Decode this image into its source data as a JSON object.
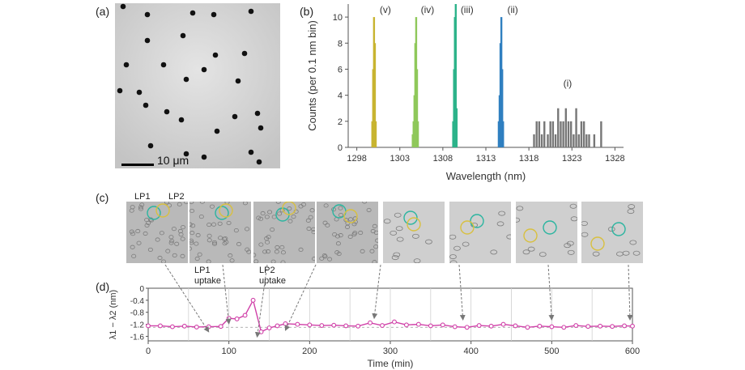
{
  "panels": {
    "a": {
      "label": "(a)",
      "scale_bar": "10 μm"
    },
    "b": {
      "label": "(b)"
    },
    "c": {
      "label": "(c)",
      "lp1": "LP1",
      "lp2": "LP2",
      "lp1_uptake": [
        "LP1",
        "uptake"
      ],
      "lp2_uptake": [
        "LP2",
        "uptake"
      ],
      "frame_count": 8
    },
    "d": {
      "label": "(d)"
    }
  },
  "chart_data": [
    {
      "type": "bar",
      "panel": "b",
      "title": "",
      "xlabel": "Wavelength (nm)",
      "ylabel": "Counts (per 0.1 nm bin)",
      "xlim": [
        1297,
        1329
      ],
      "ylim": [
        0,
        11
      ],
      "xticks": [
        1298,
        1303,
        1308,
        1313,
        1318,
        1323,
        1328
      ],
      "yticks": [
        0,
        2,
        4,
        6,
        8,
        10
      ],
      "series": [
        {
          "name": "(v)",
          "color": "#c8b430",
          "x": [
            1299.8,
            1299.9,
            1300.0,
            1300.1,
            1300.2
          ],
          "values": [
            2,
            6,
            10,
            8,
            2
          ]
        },
        {
          "name": "(iv)",
          "color": "#8fc85a",
          "x": [
            1304.5,
            1304.6,
            1304.7,
            1304.8,
            1304.9,
            1305.0,
            1305.1
          ],
          "values": [
            1,
            2,
            4,
            8,
            10,
            6,
            2
          ]
        },
        {
          "name": "(iii)",
          "color": "#2db38a",
          "x": [
            1309.2,
            1309.3,
            1309.4,
            1309.5,
            1309.6
          ],
          "values": [
            2,
            6,
            10,
            11,
            3
          ]
        },
        {
          "name": "(ii)",
          "color": "#2f7fc0",
          "x": [
            1314.5,
            1314.6,
            1314.7,
            1314.8,
            1314.9,
            1315.0
          ],
          "values": [
            2,
            4,
            8,
            10,
            6,
            2
          ]
        },
        {
          "name": "(i)",
          "color": "#777777",
          "x": [
            1318.6,
            1318.9,
            1319.2,
            1319.5,
            1319.8,
            1320.2,
            1320.5,
            1320.8,
            1321.1,
            1321.4,
            1321.7,
            1322.0,
            1322.3,
            1322.6,
            1322.9,
            1323.2,
            1323.5,
            1323.8,
            1324.1,
            1324.4,
            1324.7,
            1325.0,
            1325.6,
            1326.4
          ],
          "values": [
            1,
            2,
            2,
            1,
            2,
            1,
            2,
            2,
            1,
            3,
            2,
            2,
            3,
            2,
            2,
            1,
            3,
            1,
            2,
            2,
            1,
            1,
            1,
            2
          ]
        }
      ]
    },
    {
      "type": "line",
      "panel": "d",
      "title": "",
      "xlabel": "Time (min)",
      "ylabel": "λ1 − λ2 (nm)",
      "xlim": [
        0,
        600
      ],
      "ylim": [
        -1.75,
        0
      ],
      "xticks": [
        0,
        100,
        200,
        300,
        400,
        500,
        600
      ],
      "yticks": [
        0,
        -0.4,
        -0.8,
        -1.2,
        -1.6
      ],
      "reference_line": -1.3,
      "color": "#d040a8",
      "x": [
        0,
        15,
        30,
        45,
        60,
        75,
        90,
        100,
        110,
        120,
        130,
        140,
        150,
        160,
        170,
        185,
        200,
        215,
        230,
        245,
        260,
        275,
        290,
        305,
        320,
        335,
        350,
        365,
        380,
        395,
        410,
        425,
        440,
        455,
        470,
        485,
        500,
        515,
        530,
        545,
        560,
        575,
        590,
        600
      ],
      "y": [
        -1.25,
        -1.25,
        -1.28,
        -1.26,
        -1.29,
        -1.28,
        -1.27,
        -1.0,
        -1.02,
        -0.9,
        -0.4,
        -1.45,
        -1.32,
        -1.25,
        -1.18,
        -1.2,
        -1.22,
        -1.24,
        -1.23,
        -1.25,
        -1.26,
        -1.15,
        -1.24,
        -1.12,
        -1.22,
        -1.2,
        -1.25,
        -1.22,
        -1.28,
        -1.3,
        -1.24,
        -1.26,
        -1.2,
        -1.25,
        -1.3,
        -1.26,
        -1.28,
        -1.3,
        -1.24,
        -1.27,
        -1.26,
        -1.27,
        -1.25,
        -1.26
      ]
    }
  ]
}
